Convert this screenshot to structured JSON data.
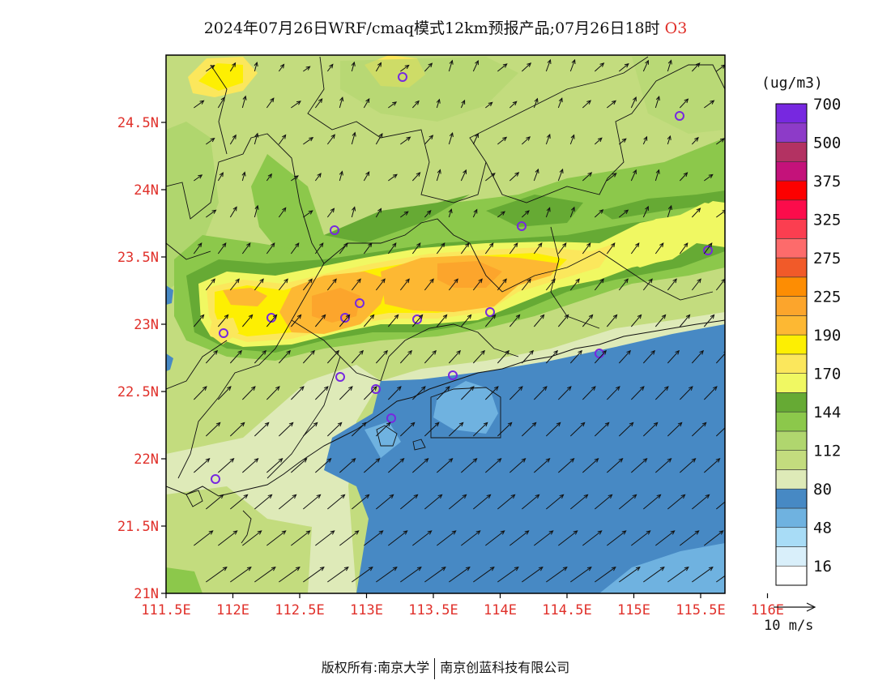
{
  "title": {
    "main": "2024年07月26日WRF/cmaq模式12km预报产品;07月26日18时",
    "variable": "O3"
  },
  "legend": {
    "unit": "(ug/m3)",
    "colors": [
      "#ffffff",
      "#d9effa",
      "#a8dcf6",
      "#6fb2e0",
      "#4789c4",
      "#deeab8",
      "#c3dc7e",
      "#b0d66e",
      "#8cc84b",
      "#66aa34",
      "#f0f862",
      "#fbe75c",
      "#fdef02",
      "#fdb833",
      "#fca52c",
      "#fd8d03",
      "#f15a29",
      "#fd6b6b",
      "#fb3e50",
      "#fc0c4b",
      "#fd0000",
      "#c4127a",
      "#b33262",
      "#8d3bc8",
      "#7728e0"
    ],
    "ticks": [
      {
        "label": "16",
        "index": 1
      },
      {
        "label": "48",
        "index": 3
      },
      {
        "label": "80",
        "index": 5
      },
      {
        "label": "112",
        "index": 7
      },
      {
        "label": "144",
        "index": 9
      },
      {
        "label": "170",
        "index": 11
      },
      {
        "label": "190",
        "index": 13
      },
      {
        "label": "225",
        "index": 15
      },
      {
        "label": "275",
        "index": 17
      },
      {
        "label": "325",
        "index": 19
      },
      {
        "label": "375",
        "index": 21
      },
      {
        "label": "500",
        "index": 23
      },
      {
        "label": "700",
        "index": 25
      }
    ]
  },
  "axes": {
    "lat_labels": [
      {
        "label": "24.5N",
        "lat": 24.5
      },
      {
        "label": "24N",
        "lat": 24.0
      },
      {
        "label": "23.5N",
        "lat": 23.5
      },
      {
        "label": "23N",
        "lat": 23.0
      },
      {
        "label": "22.5N",
        "lat": 22.5
      },
      {
        "label": "22N",
        "lat": 22.0
      },
      {
        "label": "21.5N",
        "lat": 21.5
      },
      {
        "label": "21N",
        "lat": 21.0
      }
    ],
    "lon_labels": [
      {
        "label": "111.5E",
        "lon": 111.5
      },
      {
        "label": "112E",
        "lon": 112.0
      },
      {
        "label": "112.5E",
        "lon": 112.5
      },
      {
        "label": "113E",
        "lon": 113.0
      },
      {
        "label": "113.5E",
        "lon": 113.5
      },
      {
        "label": "114E",
        "lon": 114.0
      },
      {
        "label": "114.5E",
        "lon": 114.5
      },
      {
        "label": "115E",
        "lon": 115.0
      },
      {
        "label": "115.5E",
        "lon": 115.5
      },
      {
        "label": "116E",
        "lon": 116.0
      }
    ]
  },
  "wind_scale": {
    "label": "10 m/s"
  },
  "footer": {
    "left": "版权所有:南京大学",
    "right": "南京创蓝科技有限公司"
  }
}
